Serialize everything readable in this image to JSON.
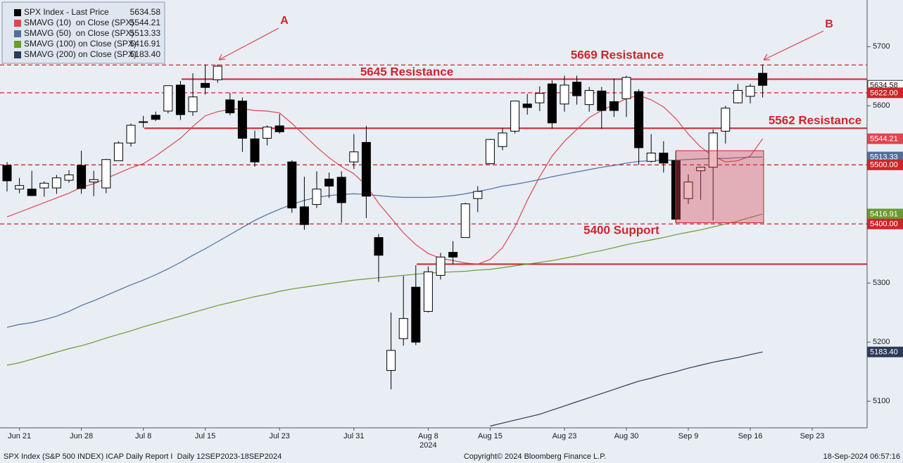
{
  "chart_data": {
    "type": "candlestick",
    "categories": [
      null,
      "Jun 21",
      null,
      null,
      null,
      null,
      "Jun 28",
      null,
      null,
      null,
      null,
      "Jul 8",
      null,
      null,
      null,
      null,
      "Jul 15",
      null,
      null,
      null,
      null,
      null,
      "Jul 23",
      null,
      null,
      null,
      null,
      null,
      "Jul 31",
      null,
      null,
      null,
      null,
      null,
      "Aug 8",
      null,
      null,
      null,
      null,
      "Aug 15",
      null,
      null,
      null,
      null,
      null,
      "Aug 23",
      null,
      null,
      null,
      null,
      "Aug 30",
      null,
      null,
      null,
      null,
      "Sep 9",
      null,
      null,
      null,
      null,
      "Sep 16",
      null,
      null,
      null,
      null,
      "Sep 23",
      null,
      null,
      null,
      null
    ],
    "year_label": "2024",
    "ylim": [
      5055,
      5779
    ],
    "yticks": [
      5100,
      5200,
      5300,
      5400,
      5500,
      5600,
      5700
    ],
    "grid": false,
    "series": [
      {
        "name": "SPX Index - Last Price",
        "type": "candlestick",
        "color": "#000000",
        "up_color": "#ffffff",
        "last_value": 5634.58,
        "open": [
          5499,
          5459,
          5459,
          5461,
          5461,
          5474,
          5499,
          5471,
          5461,
          5507,
          5537,
          5572,
          5584,
          5591,
          5635,
          5590,
          5638,
          5644,
          5610,
          5608,
          5544,
          5545,
          5566,
          5505,
          5429,
          5433,
          5476,
          5479,
          5505,
          5538,
          5377,
          5152,
          5206,
          5293,
          5252,
          5313,
          5352,
          5377,
          5443,
          5502,
          5531,
          5557,
          5603,
          5605,
          5637,
          5603,
          5640,
          5602,
          5625,
          5607,
          5612,
          5624,
          5506,
          5520,
          5507,
          5443,
          5490,
          5496,
          5557,
          5605,
          5616,
          5655,
          null,
          null,
          null,
          null,
          null,
          null,
          null,
          null
        ],
        "high": [
          5505,
          5478,
          5490,
          5472,
          5483,
          5491,
          5524,
          5490,
          5510,
          5540,
          5570,
          5583,
          5590,
          5635,
          5642,
          5655,
          5670,
          5670,
          5622,
          5614,
          5558,
          5567,
          5586,
          5508,
          5480,
          5489,
          5487,
          5489,
          5552,
          5566,
          5383,
          5250,
          5312,
          5330,
          5328,
          5351,
          5371,
          5436,
          5464,
          5544,
          5562,
          5608,
          5620,
          5633,
          5643,
          5651,
          5651,
          5632,
          5632,
          5646,
          5651,
          5628,
          5552,
          5540,
          5523,
          5484,
          5497,
          5560,
          5600,
          5637,
          5637,
          5670,
          null,
          null,
          null,
          null,
          null,
          null,
          null,
          null
        ],
        "low": [
          5455,
          5452,
          5447,
          5446,
          5451,
          5470,
          5451,
          5447,
          5452,
          5507,
          5531,
          5563,
          5574,
          5587,
          5576,
          5583,
          5619,
          5639,
          5584,
          5522,
          5497,
          5533,
          5553,
          5419,
          5390,
          5427,
          5444,
          5402,
          5493,
          5410,
          5302,
          5120,
          5194,
          5195,
          5250,
          5306,
          5332,
          5377,
          5420,
          5501,
          5525,
          5553,
          5585,
          5591,
          5561,
          5590,
          5602,
          5590,
          5561,
          5581,
          5581,
          5500,
          5504,
          5487,
          5403,
          5434,
          5441,
          5406,
          5536,
          5604,
          5604,
          5614,
          null,
          null,
          null,
          null,
          null,
          null,
          null,
          null
        ],
        "close": [
          5473,
          5465,
          5448,
          5469,
          5478,
          5483,
          5460,
          5475,
          5509,
          5537,
          5567,
          5573,
          5577,
          5634,
          5585,
          5615,
          5631,
          5667,
          5588,
          5545,
          5505,
          5564,
          5556,
          5427,
          5399,
          5459,
          5464,
          5436,
          5522,
          5447,
          5347,
          5186,
          5240,
          5200,
          5319,
          5344,
          5344,
          5434,
          5455,
          5543,
          5554,
          5608,
          5597,
          5621,
          5571,
          5635,
          5617,
          5626,
          5592,
          5592,
          5648,
          5529,
          5520,
          5503,
          5408,
          5471,
          5496,
          5554,
          5596,
          5626,
          5633,
          5634.58,
          null,
          null,
          null,
          null,
          null,
          null,
          null,
          null
        ]
      },
      {
        "name": "SMAVG (10)  on Close (SPX)",
        "type": "line",
        "color": "#e0454d",
        "last_value": 5544.21,
        "values": [
          5412,
          5420,
          5428,
          5436,
          5444,
          5452,
          5462,
          5468,
          5477,
          5486,
          5495,
          5502,
          5515,
          5530,
          5545,
          5565,
          5583,
          5590,
          5594,
          5595,
          5592,
          5591,
          5588,
          5570,
          5550,
          5530,
          5512,
          5497,
          5485,
          5465,
          5435,
          5410,
          5385,
          5365,
          5350,
          5342,
          5338,
          5334,
          5332,
          5340,
          5360,
          5395,
          5440,
          5480,
          5515,
          5540,
          5560,
          5580,
          5592,
          5602,
          5612,
          5618,
          5610,
          5598,
          5578,
          5552,
          5530,
          5515,
          5505,
          5507,
          5515,
          5544.21,
          null,
          null,
          null,
          null,
          null,
          null,
          null,
          null
        ]
      },
      {
        "name": "SMAVG (50)  on Close (SPX)",
        "type": "line",
        "color": "#4f6f9f",
        "last_value": 5513.33,
        "values": [
          5225,
          5230,
          5233,
          5238,
          5244,
          5252,
          5262,
          5270,
          5279,
          5288,
          5297,
          5305,
          5314,
          5324,
          5335,
          5347,
          5358,
          5370,
          5382,
          5394,
          5406,
          5416,
          5425,
          5433,
          5440,
          5445,
          5448,
          5450,
          5451,
          5450,
          5448,
          5446,
          5445,
          5445,
          5445,
          5446,
          5448,
          5451,
          5455,
          5459,
          5464,
          5467,
          5471,
          5475,
          5480,
          5484,
          5488,
          5492,
          5496,
          5499,
          5503,
          5506,
          5507,
          5508,
          5508,
          5509,
          5510,
          5511,
          5511,
          5512,
          5513,
          5513.33,
          null,
          null,
          null,
          null,
          null,
          null,
          null,
          null
        ]
      },
      {
        "name": "SMAVG (100) on Close (SPX)",
        "type": "line",
        "color": "#6b9a2f",
        "last_value": 5416.91,
        "values": [
          5161,
          5165,
          5171,
          5177,
          5183,
          5189,
          5194,
          5200,
          5207,
          5213,
          5219,
          5226,
          5232,
          5238,
          5244,
          5250,
          5256,
          5262,
          5267,
          5272,
          5277,
          5281,
          5286,
          5290,
          5293,
          5296,
          5299,
          5302,
          5305,
          5307,
          5309,
          5311,
          5313,
          5315,
          5317,
          5318,
          5319,
          5320,
          5322,
          5323,
          5326,
          5329,
          5332,
          5335,
          5338,
          5342,
          5346,
          5351,
          5355,
          5360,
          5365,
          5369,
          5373,
          5377,
          5382,
          5386,
          5390,
          5395,
          5400,
          5405,
          5411,
          5416.91,
          null,
          null,
          null,
          null,
          null,
          null,
          null,
          null
        ]
      },
      {
        "name": "SMAVG (200) on Close (SPX)",
        "type": "line",
        "color": "#2b3a55",
        "last_value": 5183.4,
        "last_value_label": "5183.40",
        "values": [
          null,
          null,
          null,
          null,
          null,
          null,
          null,
          null,
          null,
          null,
          null,
          null,
          null,
          null,
          null,
          null,
          null,
          null,
          null,
          null,
          null,
          null,
          null,
          null,
          null,
          null,
          null,
          null,
          null,
          null,
          null,
          null,
          null,
          null,
          null,
          null,
          null,
          null,
          null,
          5058,
          5063,
          5068,
          5073,
          5078,
          5085,
          5092,
          5099,
          5106,
          5113,
          5120,
          5127,
          5134,
          5139,
          5145,
          5150,
          5156,
          5161,
          5166,
          5170,
          5174,
          5179,
          5183.4,
          null,
          null,
          null,
          null,
          null,
          null,
          null,
          null
        ]
      }
    ],
    "levels": [
      {
        "value": 5669,
        "style": "dashed",
        "label": "5669 Resistance"
      },
      {
        "value": 5645,
        "style": "solid",
        "label": "5645 Resistance"
      },
      {
        "value": 5622,
        "style": "dashed"
      },
      {
        "value": 5562,
        "style": "solid",
        "label": "5562 Resistance"
      },
      {
        "value": 5500,
        "style": "dashed"
      },
      {
        "value": 5400,
        "style": "dashed",
        "label": "5400 Support"
      },
      {
        "value": 5332,
        "style": "solid"
      }
    ],
    "level_color": "#d0242b",
    "zone": [
      5402,
      5524
    ],
    "price_tags": [
      {
        "value": 5634.58,
        "color": "#ffffff"
      },
      {
        "value": 5622,
        "label": "5622.00",
        "color": "#d0242b"
      },
      {
        "value": 5544.21,
        "color": "#e0454d"
      },
      {
        "value": 5513.33,
        "color": "#4f6f9f"
      },
      {
        "value": 5500,
        "label": "5500.00",
        "color": "#d0242b"
      },
      {
        "value": 5416.91,
        "color": "#6b9a2f"
      },
      {
        "value": 5400,
        "label": "5400.00",
        "color": "#d0242b"
      },
      {
        "value": 5183.4,
        "label": "5183.40",
        "color": "#2b3a55"
      }
    ],
    "annotations": [
      "A",
      "B"
    ],
    "footer": {
      "left": "SPX Index (S&P 500 INDEX) ICAP Daily Report I  Daily 12SEP2023-18SEP2024",
      "center": "Copyright© 2024 Bloomberg Finance L.P.",
      "right": "18-Sep-2024 06:57:16"
    }
  }
}
